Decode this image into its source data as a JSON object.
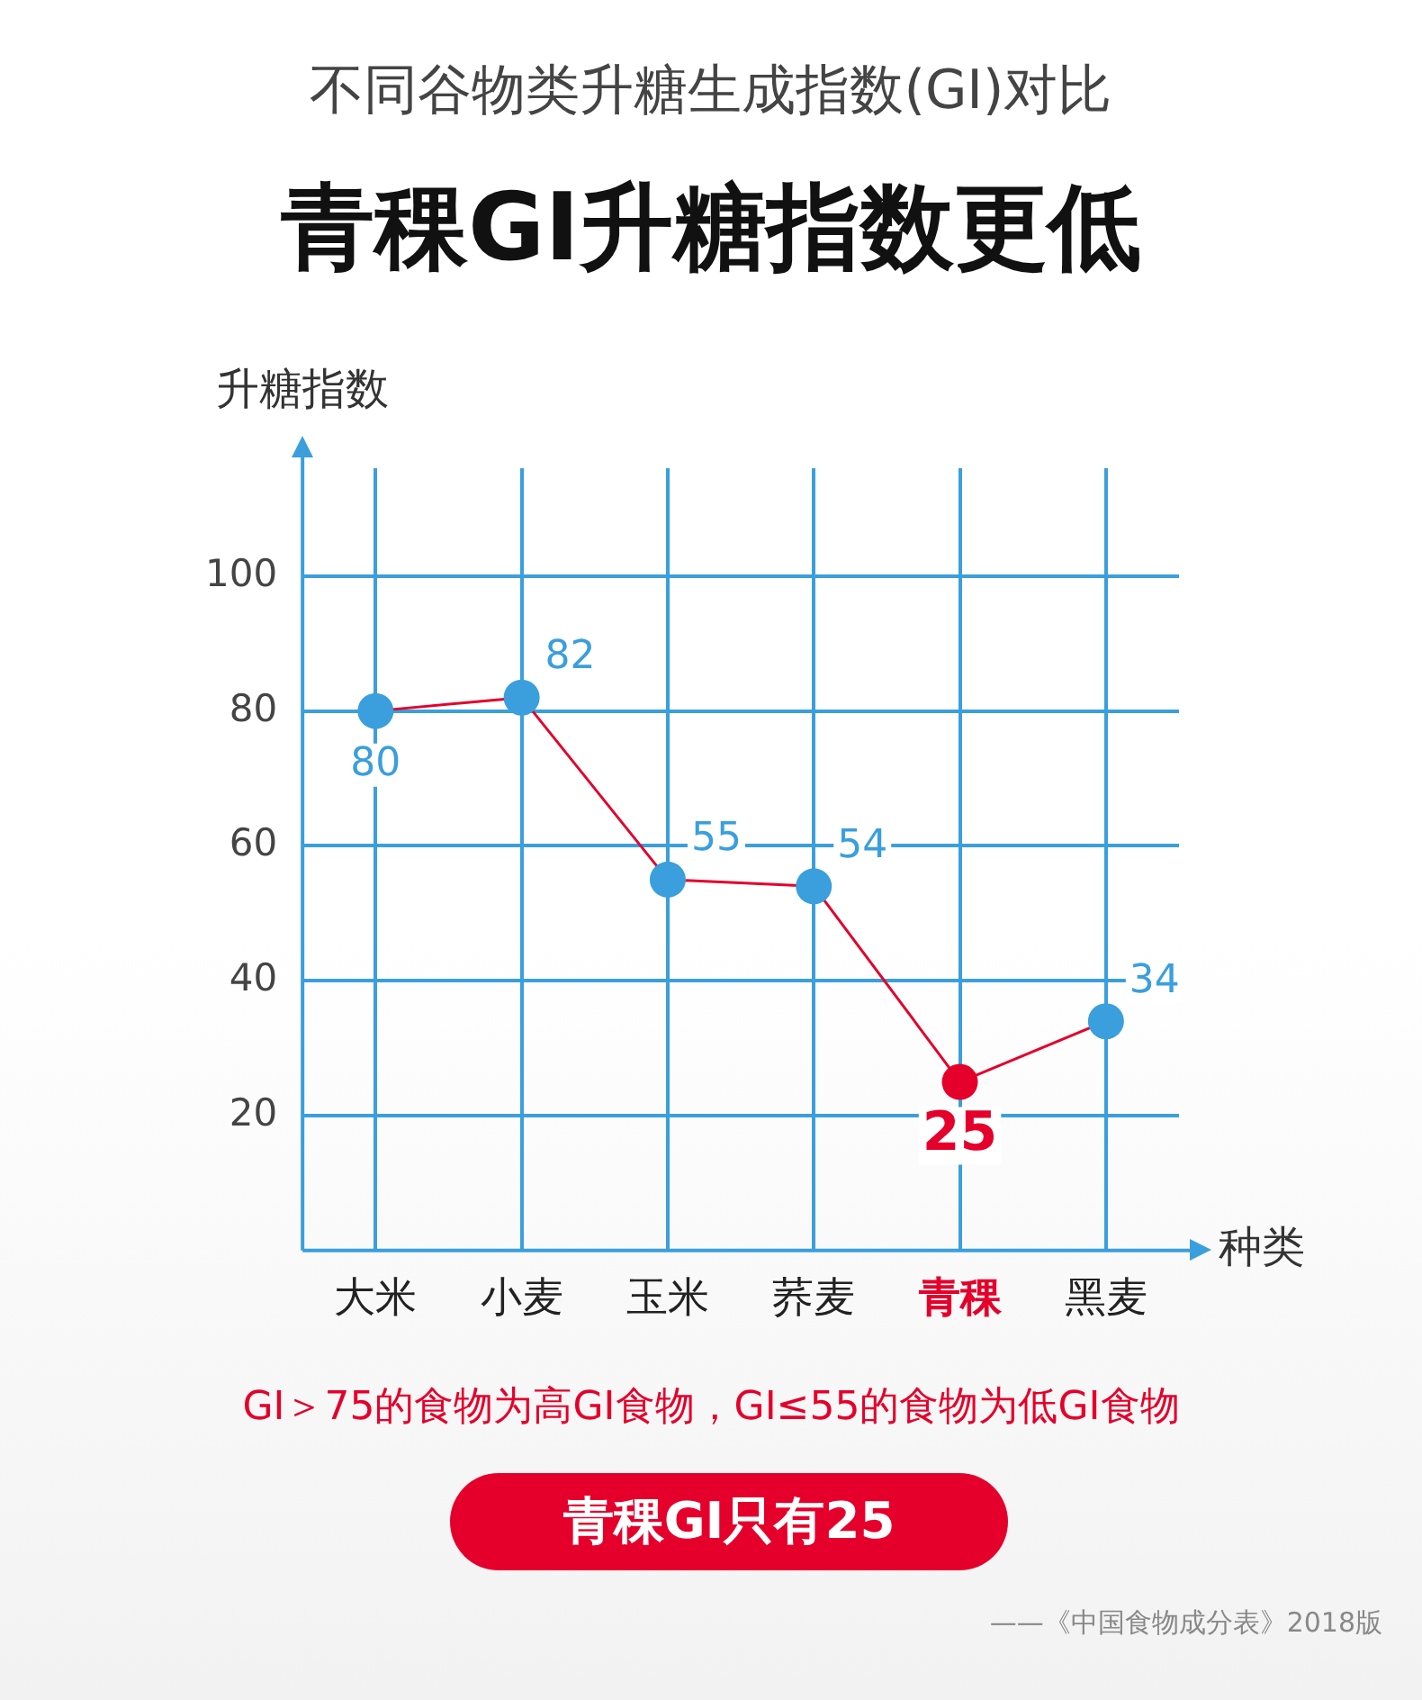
{
  "chart_data": {
    "type": "line",
    "title": "不同谷物类升糖生成指数(GI)对比",
    "subtitle": "青稞GI升糖指数更低",
    "xlabel": "种类",
    "ylabel": "升糖指数",
    "categories": [
      "大米",
      "小麦",
      "玉米",
      "荞麦",
      "青稞",
      "黑麦"
    ],
    "series": [
      {
        "color": "#e4002b",
        "colors": [
          "#3a9fdc",
          "#3a9fdc",
          "#3a9fdc",
          "#3a9fdc",
          "#e4002b",
          "#3a9fdc"
        ],
        "values": [
          80,
          82,
          55,
          54,
          25,
          34
        ]
      }
    ],
    "ylim": [
      0,
      116
    ],
    "yticks": [
      20,
      40,
      60,
      80,
      100
    ],
    "grid": true,
    "marker": "circle",
    "data_labels": true,
    "annotations": [
      "GI＞75的食物为高GI食物，GI≤55的食物为低GI食物",
      "青稞GI只有25",
      "——《中国食物成分表》2018版"
    ]
  }
}
